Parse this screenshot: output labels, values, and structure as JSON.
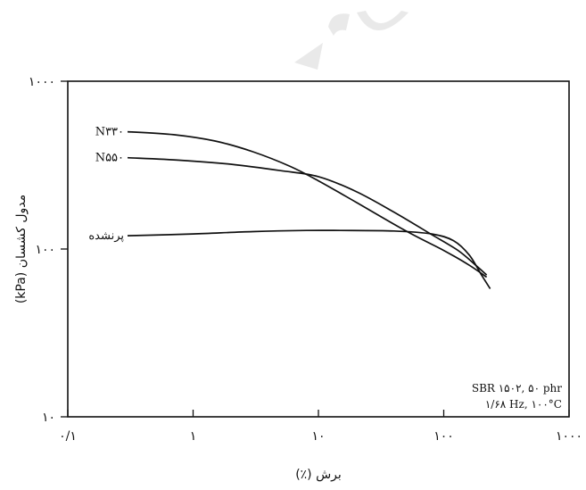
{
  "chart_data": {
    "type": "line",
    "xlabel": "برش (٪)",
    "ylabel": "مدول کشسان (kPa)",
    "x_scale": "log",
    "y_scale": "log",
    "xlim": [
      0.1,
      1000
    ],
    "ylim": [
      10,
      1000
    ],
    "x_ticks": [
      {
        "value": 0.1,
        "label": "۰/۱"
      },
      {
        "value": 1,
        "label": "۱"
      },
      {
        "value": 10,
        "label": "۱۰"
      },
      {
        "value": 100,
        "label": "۱۰۰"
      },
      {
        "value": 1000,
        "label": "۱۰۰۰"
      }
    ],
    "y_ticks": [
      {
        "value": 10,
        "label": "۱۰"
      },
      {
        "value": 100,
        "label": "۱۰۰"
      },
      {
        "value": 1000,
        "label": "۱۰۰۰"
      }
    ],
    "grid": false,
    "series": [
      {
        "name": "N۳۳۰",
        "color": "#111111",
        "x": [
          0.3,
          0.7,
          1.5,
          3,
          6,
          10,
          20,
          50,
          100,
          160,
          220
        ],
        "y": [
          500,
          480,
          440,
          380,
          310,
          255,
          190,
          128,
          98,
          80,
          68
        ]
      },
      {
        "name": "N۵۵۰",
        "color": "#111111",
        "x": [
          0.3,
          0.8,
          2,
          5,
          10,
          20,
          40,
          80,
          130,
          180,
          220
        ],
        "y": [
          350,
          338,
          320,
          293,
          270,
          220,
          166,
          122,
          98,
          80,
          70
        ]
      },
      {
        "name": "پرنشده",
        "color": "#111111",
        "x": [
          0.3,
          1,
          3,
          8,
          15,
          40,
          80,
          120,
          160,
          200,
          235
        ],
        "y": [
          120,
          123,
          127,
          129,
          129,
          128,
          123,
          112,
          92,
          70,
          58
        ]
      }
    ],
    "annotations": [
      "SBR ۱۵۰۲, ۵۰ phr",
      "۱/۶۸ Hz, ۱۰۰°C"
    ]
  }
}
